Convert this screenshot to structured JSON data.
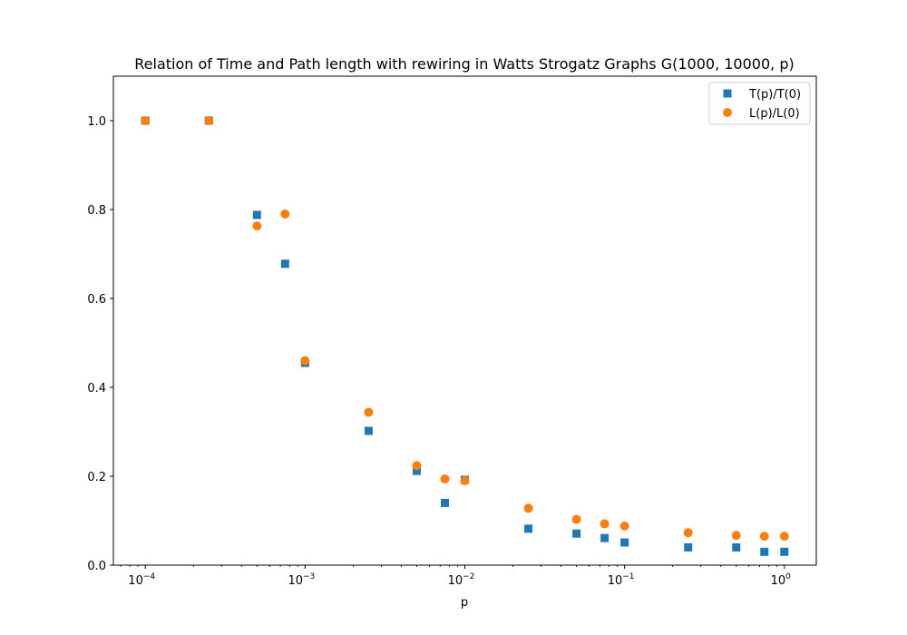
{
  "chart_data": {
    "type": "scatter",
    "title": "Relation of Time and Path length with rewiring in Watts Strogatz Graphs G(1000, 10000, p)",
    "xlabel": "p",
    "ylabel": "",
    "xscale": "log",
    "xlim": [
      6.31e-05,
      1.585
    ],
    "ylim": [
      0,
      1.1
    ],
    "grid": false,
    "legend_position": "top-right",
    "x_ticks": [
      {
        "value": 0.0001,
        "base": "10",
        "exp": "−4"
      },
      {
        "value": 0.001,
        "base": "10",
        "exp": "−3"
      },
      {
        "value": 0.01,
        "base": "10",
        "exp": "−2"
      },
      {
        "value": 0.1,
        "base": "10",
        "exp": "−1"
      },
      {
        "value": 1,
        "base": "10",
        "exp": "0"
      }
    ],
    "y_ticks": [
      "0.0",
      "0.2",
      "0.4",
      "0.6",
      "0.8",
      "1.0"
    ],
    "series": [
      {
        "name": "T(p)/T(0)",
        "marker": "square",
        "color": "#1f77b4",
        "x": [
          0.0001,
          0.00025,
          0.0005,
          0.00075,
          0.001,
          0.0025,
          0.005,
          0.0075,
          0.01,
          0.025,
          0.05,
          0.075,
          0.1,
          0.25,
          0.5,
          0.75,
          1.0
        ],
        "y": [
          1.0,
          1.0,
          0.788,
          0.678,
          0.455,
          0.302,
          0.212,
          0.14,
          0.192,
          0.082,
          0.071,
          0.061,
          0.051,
          0.04,
          0.04,
          0.03,
          0.03
        ]
      },
      {
        "name": "L(p)/L(0)",
        "marker": "circle",
        "color": "#ff7f0e",
        "x": [
          0.0001,
          0.00025,
          0.0005,
          0.00075,
          0.001,
          0.0025,
          0.005,
          0.0075,
          0.01,
          0.025,
          0.05,
          0.075,
          0.1,
          0.25,
          0.5,
          0.75,
          1.0
        ],
        "y": [
          1.0,
          1.0,
          0.763,
          0.79,
          0.46,
          0.344,
          0.224,
          0.194,
          0.19,
          0.128,
          0.103,
          0.093,
          0.088,
          0.073,
          0.067,
          0.065,
          0.065
        ]
      }
    ]
  }
}
